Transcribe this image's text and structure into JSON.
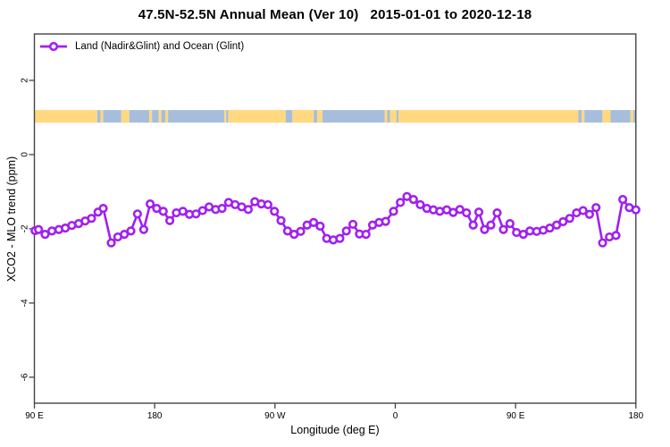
{
  "chart_data": {
    "type": "line",
    "title": "47.5N-52.5N Annual Mean (Ver 10)   2015-01-01 to 2020-12-18",
    "xlabel": "Longitude (deg E)",
    "ylabel": "XCO2 - MLO trend (ppm)",
    "legend": {
      "label": "Land (Nadir&Glint) and Ocean (Glint)",
      "position": "top-left"
    },
    "xlim": [
      90,
      540
    ],
    "ylim": [
      -6.7,
      3.25
    ],
    "grid": false,
    "axis_color": "#444444",
    "x_ticks": [
      {
        "value": 90,
        "label": "90 E"
      },
      {
        "value": 180,
        "label": "180"
      },
      {
        "value": 270,
        "label": "90 W"
      },
      {
        "value": 360,
        "label": "0"
      },
      {
        "value": 450,
        "label": "90 E"
      },
      {
        "value": 540,
        "label": "180"
      }
    ],
    "y_ticks": [
      {
        "value": 2,
        "label": "2"
      },
      {
        "value": 0,
        "label": "0"
      },
      {
        "value": -2,
        "label": "-2"
      },
      {
        "value": -4,
        "label": "-4"
      },
      {
        "value": -6,
        "label": "-6"
      }
    ],
    "series": [
      {
        "name": "Land (Nadir&Glint) and Ocean (Glint)",
        "color": "#A020F0",
        "marker": "open-circle",
        "points": [
          [
            90.5,
            -2.05
          ],
          [
            93.1,
            -2.02
          ],
          [
            98,
            -2.15
          ],
          [
            103.1,
            -2.06
          ],
          [
            108.3,
            -2.02
          ],
          [
            113.1,
            -1.98
          ],
          [
            118,
            -1.91
          ],
          [
            123.1,
            -1.86
          ],
          [
            128,
            -1.79
          ],
          [
            132.7,
            -1.72
          ],
          [
            137.6,
            -1.55
          ],
          [
            141.5,
            -1.45
          ],
          [
            147.5,
            -2.38
          ],
          [
            152.4,
            -2.22
          ],
          [
            157.3,
            -2.15
          ],
          [
            162.2,
            -2.06
          ],
          [
            167.1,
            -1.6
          ],
          [
            171.8,
            -2.02
          ],
          [
            176.6,
            -1.33
          ],
          [
            181.5,
            -1.45
          ],
          [
            186.4,
            -1.53
          ],
          [
            191.3,
            -1.78
          ],
          [
            196.2,
            -1.57
          ],
          [
            201.1,
            -1.53
          ],
          [
            206,
            -1.61
          ],
          [
            210.9,
            -1.6
          ],
          [
            215.8,
            -1.51
          ],
          [
            220.7,
            -1.41
          ],
          [
            225.6,
            -1.48
          ],
          [
            230.4,
            -1.45
          ],
          [
            235.3,
            -1.29
          ],
          [
            240.2,
            -1.35
          ],
          [
            245.1,
            -1.41
          ],
          [
            250,
            -1.48
          ],
          [
            254.9,
            -1.27
          ],
          [
            259.8,
            -1.33
          ],
          [
            264.7,
            -1.35
          ],
          [
            269.6,
            -1.53
          ],
          [
            274.5,
            -1.78
          ],
          [
            279.4,
            -2.06
          ],
          [
            284.3,
            -2.15
          ],
          [
            289.2,
            -2.07
          ],
          [
            294,
            -1.9
          ],
          [
            298.9,
            -1.83
          ],
          [
            303.8,
            -1.93
          ],
          [
            308.7,
            -2.26
          ],
          [
            313.6,
            -2.3
          ],
          [
            318.5,
            -2.26
          ],
          [
            323.4,
            -2.06
          ],
          [
            328.3,
            -1.88
          ],
          [
            333.2,
            -2.14
          ],
          [
            338.1,
            -2.15
          ],
          [
            343,
            -1.9
          ],
          [
            347.9,
            -1.83
          ],
          [
            352.8,
            -1.8
          ],
          [
            358.7,
            -1.53
          ],
          [
            363.8,
            -1.29
          ],
          [
            368.7,
            -1.13
          ],
          [
            373.6,
            -1.21
          ],
          [
            378.7,
            -1.35
          ],
          [
            383.6,
            -1.45
          ],
          [
            388.5,
            -1.49
          ],
          [
            393.3,
            -1.53
          ],
          [
            398.5,
            -1.49
          ],
          [
            403.3,
            -1.56
          ],
          [
            408.3,
            -1.48
          ],
          [
            413.3,
            -1.57
          ],
          [
            418.3,
            -1.9
          ],
          [
            422.5,
            -1.55
          ],
          [
            426.8,
            -2.02
          ],
          [
            431.5,
            -1.9
          ],
          [
            436.2,
            -1.57
          ],
          [
            440.9,
            -2.02
          ],
          [
            445.8,
            -1.86
          ],
          [
            450.7,
            -2.1
          ],
          [
            455.8,
            -2.15
          ],
          [
            460.7,
            -2.06
          ],
          [
            465.8,
            -2.07
          ],
          [
            470.7,
            -2.04
          ],
          [
            475.6,
            -1.98
          ],
          [
            480.7,
            -1.9
          ],
          [
            485.5,
            -1.81
          ],
          [
            490.5,
            -1.72
          ],
          [
            495.6,
            -1.57
          ],
          [
            500.5,
            -1.51
          ],
          [
            505.3,
            -1.61
          ],
          [
            510.2,
            -1.43
          ],
          [
            515.1,
            -2.38
          ],
          [
            520.2,
            -2.22
          ],
          [
            525.1,
            -2.18
          ],
          [
            530.2,
            -1.21
          ],
          [
            535.1,
            -1.43
          ],
          [
            540,
            -1.49
          ]
        ]
      }
    ],
    "land_ocean_strip": {
      "description": "land/ocean mask band drawn near +1 ppm",
      "y_value": 1.03,
      "half_height_value": 0.17,
      "land_color": "#FFD880",
      "ocean_color": "#A6BEDC",
      "segments": [
        [
          90,
          137,
          "land"
        ],
        [
          137,
          139.5,
          "ocean"
        ],
        [
          139.5,
          141.5,
          "land"
        ],
        [
          141.5,
          155,
          "ocean"
        ],
        [
          155,
          161,
          "land"
        ],
        [
          161,
          176,
          "ocean"
        ],
        [
          176,
          178,
          "land"
        ],
        [
          178,
          183,
          "ocean"
        ],
        [
          183,
          185,
          "land"
        ],
        [
          185,
          188,
          "ocean"
        ],
        [
          188,
          190,
          "land"
        ],
        [
          190,
          232,
          "ocean"
        ],
        [
          232,
          233.5,
          "land"
        ],
        [
          233.5,
          235,
          "ocean"
        ],
        [
          235,
          278,
          "land"
        ],
        [
          278,
          283,
          "ocean"
        ],
        [
          283,
          299,
          "land"
        ],
        [
          299,
          301.5,
          "ocean"
        ],
        [
          301.5,
          305.5,
          "land"
        ],
        [
          305.5,
          352,
          "ocean"
        ],
        [
          352,
          354,
          "land"
        ],
        [
          354,
          356,
          "ocean"
        ],
        [
          356,
          361,
          "land"
        ],
        [
          361,
          362.5,
          "ocean"
        ],
        [
          362.5,
          497,
          "land"
        ],
        [
          497,
          499.5,
          "ocean"
        ],
        [
          499.5,
          501.5,
          "land"
        ],
        [
          501.5,
          515,
          "ocean"
        ],
        [
          515,
          521,
          "land"
        ],
        [
          521,
          536,
          "ocean"
        ],
        [
          536,
          538,
          "land"
        ],
        [
          538,
          540,
          "ocean"
        ]
      ]
    }
  }
}
